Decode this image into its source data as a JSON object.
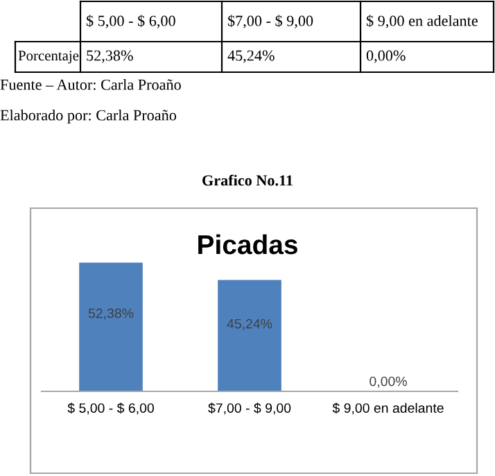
{
  "chart_data": {
    "type": "bar",
    "title": "Picadas",
    "categories": [
      "$ 5,00 - $ 6,00",
      "$7,00 - $ 9,00",
      "$ 9,00 en adelante"
    ],
    "values": [
      52.38,
      45.24,
      0.0
    ],
    "value_labels": [
      "52,38%",
      "45,24%",
      "0,00%"
    ],
    "color": "#4f81bd",
    "grid": false,
    "legend": false,
    "annotations": [
      "Porcentaje",
      "Fuente – Autor: Carla Proaño",
      "Elaborado por: Carla Proaño",
      "Grafico No.11"
    ]
  }
}
